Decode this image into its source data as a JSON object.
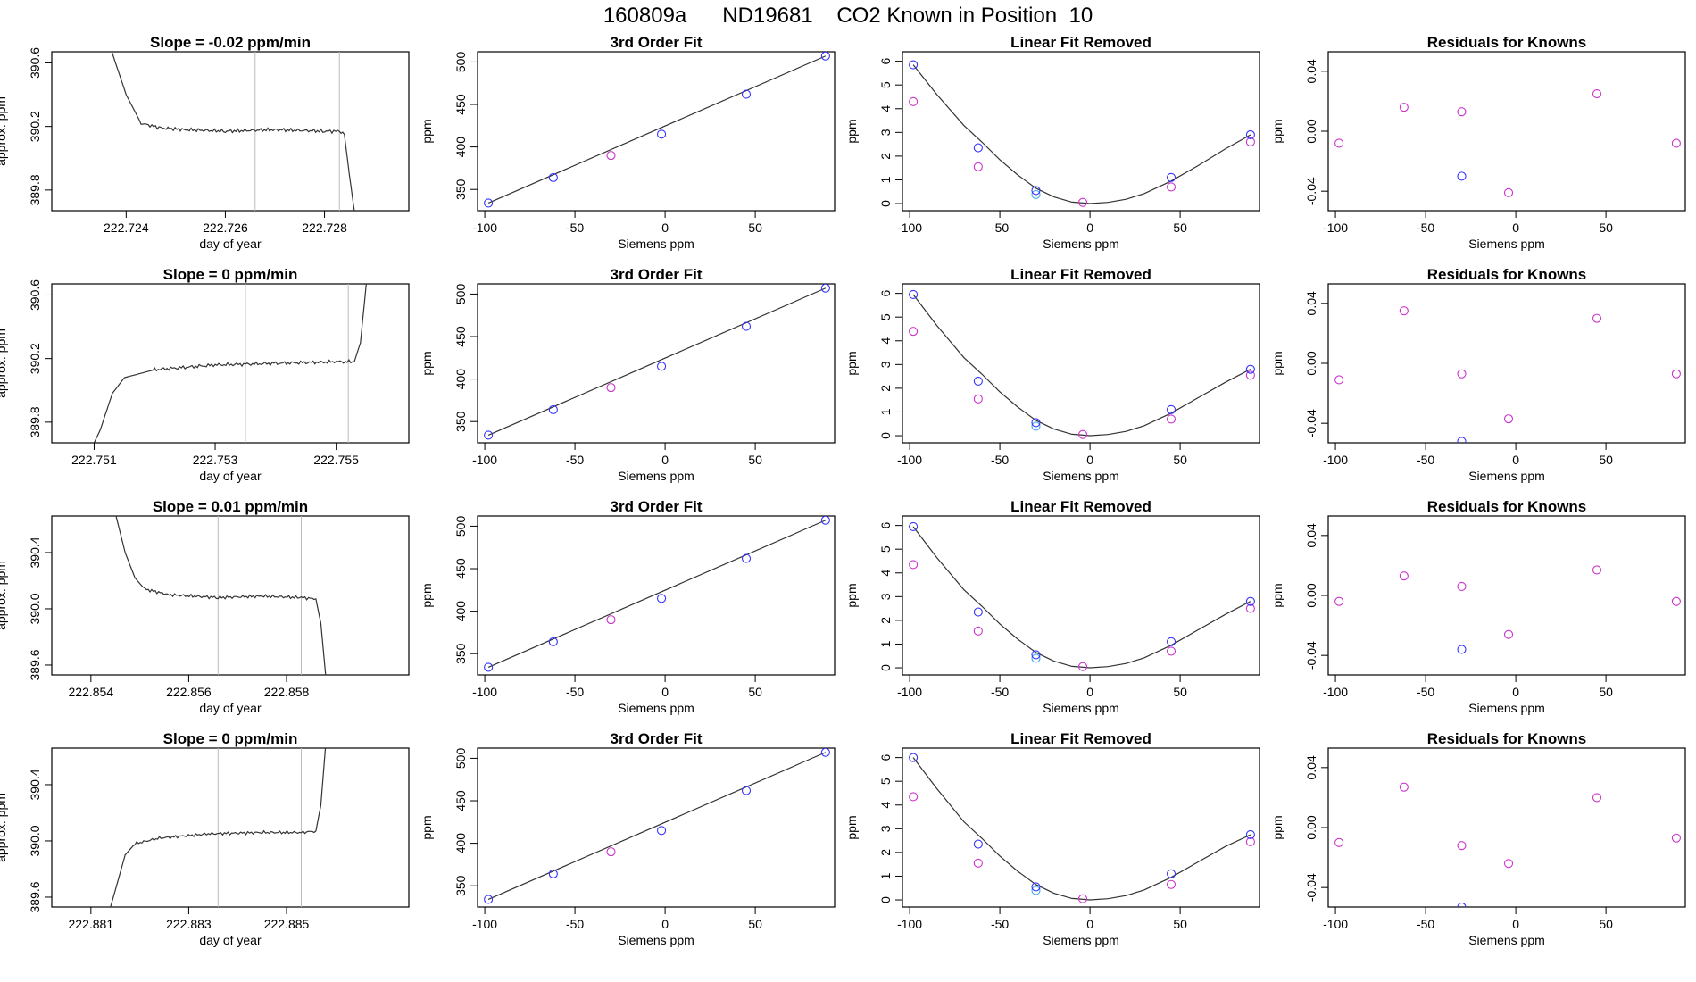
{
  "page_title": "160809a      ND19681    CO2 Known in Position  10",
  "colors": {
    "frame": "#000000",
    "curve": "#333333",
    "blue": "#3333ff",
    "magenta": "#cc33cc",
    "cyan": "#44aadd",
    "vline": "#bbbbbb",
    "red": "#dd4444"
  },
  "chart_data": [
    {
      "type": "line",
      "title": "Slope =  -0.02  ppm/min",
      "xlabel": "day of year",
      "ylabel": "approx. ppm",
      "xlim": [
        222.7225,
        222.7297
      ],
      "ylim": [
        389.67,
        390.67
      ],
      "xticks": [
        222.724,
        222.726,
        222.728
      ],
      "xtick_labels": [
        "222.724",
        "222.726",
        "222.728"
      ],
      "yticks": [
        389.8,
        390.2,
        390.6
      ],
      "ytick_labels": [
        "389.8",
        "390.2",
        "390.6"
      ],
      "vlines": [
        222.7266,
        222.7283
      ],
      "x": [
        222.7237,
        222.724,
        222.7243,
        222.7247,
        222.7252,
        222.726,
        222.727,
        222.728,
        222.7283,
        222.7284,
        222.7285,
        222.7286
      ],
      "y": [
        390.68,
        390.4,
        390.22,
        390.19,
        390.18,
        390.17,
        390.18,
        390.17,
        390.17,
        390.15,
        389.9,
        389.67
      ]
    },
    {
      "type": "scatter",
      "title": "3rd Order Fit",
      "xlabel": "Siemens ppm",
      "ylabel": "ppm",
      "xlim": [
        -104,
        94
      ],
      "ylim": [
        325,
        512
      ],
      "xticks": [
        -100,
        -50,
        0,
        50
      ],
      "xtick_labels": [
        "-100",
        "-50",
        "0",
        "50"
      ],
      "yticks": [
        350,
        400,
        450,
        500
      ],
      "ytick_labels": [
        "350",
        "400",
        "450",
        "500"
      ],
      "points_blue": {
        "x": [
          -98,
          -62,
          -2,
          45,
          89
        ],
        "y": [
          334,
          364,
          415,
          462,
          507
        ]
      },
      "points_magenta": {
        "x": [
          -30
        ],
        "y": [
          390
        ]
      },
      "fit_line": {
        "x": [
          -98,
          89
        ],
        "y": [
          334,
          507
        ]
      }
    },
    {
      "type": "scatter",
      "title": "Linear Fit Removed",
      "xlabel": "Siemens ppm",
      "ylabel": "ppm",
      "xlim": [
        -104,
        94
      ],
      "ylim": [
        -0.3,
        6.4
      ],
      "xticks": [
        -100,
        -50,
        0,
        50
      ],
      "xtick_labels": [
        "-100",
        "-50",
        "0",
        "50"
      ],
      "yticks": [
        0,
        1,
        2,
        3,
        4,
        5,
        6
      ],
      "ytick_labels": [
        "0",
        "1",
        "2",
        "3",
        "4",
        "5",
        "6"
      ],
      "points_blue": {
        "x": [
          -98,
          -62,
          -30,
          45,
          89
        ],
        "y": [
          5.85,
          2.35,
          0.55,
          1.1,
          2.9
        ]
      },
      "points_magenta": {
        "x": [
          -98,
          -62,
          -4,
          45,
          89
        ],
        "y": [
          4.3,
          1.55,
          0.05,
          0.7,
          2.6
        ]
      },
      "points_cyan": {
        "x": [
          -30
        ],
        "y": [
          0.38
        ]
      },
      "fit_curve": {
        "x": [
          -98,
          -85,
          -70,
          -60,
          -50,
          -40,
          -30,
          -20,
          -10,
          0,
          10,
          20,
          30,
          45,
          60,
          75,
          89
        ],
        "y": [
          5.85,
          4.6,
          3.3,
          2.6,
          1.85,
          1.2,
          0.65,
          0.28,
          0.06,
          0.0,
          0.05,
          0.18,
          0.42,
          0.95,
          1.6,
          2.3,
          2.9
        ]
      }
    },
    {
      "type": "scatter",
      "title": "Residuals for Knowns",
      "xlabel": "Siemens ppm",
      "ylabel": "ppm",
      "xlim": [
        -104,
        94
      ],
      "ylim": [
        -0.053,
        0.053
      ],
      "xticks": [
        -100,
        -50,
        0,
        50
      ],
      "xtick_labels": [
        "-100",
        "-50",
        "0",
        "50"
      ],
      "yticks": [
        -0.04,
        0.0,
        0.04
      ],
      "ytick_labels": [
        "-0.04",
        "0.00",
        "0.04"
      ],
      "points_blue": {
        "x": [
          -30
        ],
        "y": [
          -0.03
        ]
      },
      "points_magenta": {
        "x": [
          -98,
          -62,
          -30,
          -4,
          45,
          89
        ],
        "y": [
          -0.008,
          0.016,
          0.013,
          -0.041,
          0.025,
          -0.008
        ]
      }
    },
    {
      "type": "line",
      "title": "Slope =  0  ppm/min",
      "xlabel": "day of year",
      "ylabel": "approx. ppm",
      "xlim": [
        222.7503,
        222.7562
      ],
      "ylim": [
        389.67,
        390.67
      ],
      "xticks": [
        222.751,
        222.753,
        222.755
      ],
      "xtick_labels": [
        "222.751",
        "222.753",
        "222.755"
      ],
      "yticks": [
        389.8,
        390.2,
        390.6
      ],
      "ytick_labels": [
        "389.8",
        "390.2",
        "390.6"
      ],
      "vlines": [
        222.7535,
        222.7552
      ],
      "x": [
        222.751,
        222.7511,
        222.7513,
        222.7515,
        222.752,
        222.753,
        222.754,
        222.755,
        222.7553,
        222.7554,
        222.7555
      ],
      "y": [
        389.67,
        389.75,
        389.98,
        390.08,
        390.13,
        390.16,
        390.17,
        390.18,
        390.18,
        390.3,
        390.68
      ]
    },
    {
      "type": "scatter",
      "title": "3rd Order Fit",
      "xlabel": "Siemens ppm",
      "ylabel": "ppm",
      "xlim": [
        -104,
        94
      ],
      "ylim": [
        325,
        512
      ],
      "xticks": [
        -100,
        -50,
        0,
        50
      ],
      "xtick_labels": [
        "-100",
        "-50",
        "0",
        "50"
      ],
      "yticks": [
        350,
        400,
        450,
        500
      ],
      "ytick_labels": [
        "350",
        "400",
        "450",
        "500"
      ],
      "points_blue": {
        "x": [
          -98,
          -62,
          -2,
          45,
          89
        ],
        "y": [
          334,
          364,
          415,
          462,
          507
        ]
      },
      "points_magenta": {
        "x": [
          -30
        ],
        "y": [
          390
        ]
      },
      "fit_line": {
        "x": [
          -98,
          89
        ],
        "y": [
          334,
          507
        ]
      }
    },
    {
      "type": "scatter",
      "title": "Linear Fit Removed",
      "xlabel": "Siemens ppm",
      "ylabel": "ppm",
      "xlim": [
        -104,
        94
      ],
      "ylim": [
        -0.3,
        6.4
      ],
      "xticks": [
        -100,
        -50,
        0,
        50
      ],
      "xtick_labels": [
        "-100",
        "-50",
        "0",
        "50"
      ],
      "yticks": [
        0,
        1,
        2,
        3,
        4,
        5,
        6
      ],
      "ytick_labels": [
        "0",
        "1",
        "2",
        "3",
        "4",
        "5",
        "6"
      ],
      "points_blue": {
        "x": [
          -98,
          -62,
          -30,
          45,
          89
        ],
        "y": [
          5.95,
          2.3,
          0.55,
          1.1,
          2.8
        ]
      },
      "points_magenta": {
        "x": [
          -98,
          -62,
          -4,
          45,
          89
        ],
        "y": [
          4.4,
          1.55,
          0.05,
          0.7,
          2.55
        ]
      },
      "points_cyan": {
        "x": [
          -30
        ],
        "y": [
          0.4
        ]
      },
      "fit_curve": {
        "x": [
          -98,
          -85,
          -70,
          -60,
          -50,
          -40,
          -30,
          -20,
          -10,
          0,
          10,
          20,
          30,
          45,
          60,
          75,
          89
        ],
        "y": [
          5.95,
          4.65,
          3.3,
          2.6,
          1.85,
          1.2,
          0.65,
          0.28,
          0.06,
          0.0,
          0.05,
          0.18,
          0.42,
          0.95,
          1.6,
          2.25,
          2.8
        ]
      }
    },
    {
      "type": "scatter",
      "title": "Residuals for Knowns",
      "xlabel": "Siemens ppm",
      "ylabel": "ppm",
      "xlim": [
        -104,
        94
      ],
      "ylim": [
        -0.053,
        0.053
      ],
      "xticks": [
        -100,
        -50,
        0,
        50
      ],
      "xtick_labels": [
        "-100",
        "-50",
        "0",
        "50"
      ],
      "yticks": [
        -0.04,
        0.0,
        0.04
      ],
      "ytick_labels": [
        "-0.04",
        "0.00",
        "0.04"
      ],
      "points_blue": {
        "x": [
          -30
        ],
        "y": [
          -0.052
        ]
      },
      "points_magenta": {
        "x": [
          -98,
          -62,
          -30,
          -4,
          45,
          89
        ],
        "y": [
          -0.011,
          0.035,
          -0.007,
          -0.037,
          0.03,
          -0.007
        ]
      }
    },
    {
      "type": "line",
      "title": "Slope =  0.01  ppm/min",
      "xlabel": "day of year",
      "ylabel": "approx. ppm",
      "xlim": [
        222.8532,
        222.8605
      ],
      "ylim": [
        389.53,
        390.66
      ],
      "xticks": [
        222.854,
        222.856,
        222.858
      ],
      "xtick_labels": [
        "222.854",
        "222.856",
        "222.858"
      ],
      "yticks": [
        389.6,
        390.0,
        390.4
      ],
      "ytick_labels": [
        "389.6",
        "390.0",
        "390.4"
      ],
      "vlines": [
        222.8566,
        222.8583
      ],
      "x": [
        222.8545,
        222.8547,
        222.8549,
        222.8551,
        222.8556,
        222.8566,
        222.8575,
        222.8583,
        222.8586,
        222.8587,
        222.8588
      ],
      "y": [
        390.68,
        390.4,
        390.22,
        390.14,
        390.1,
        390.08,
        390.09,
        390.08,
        390.07,
        389.9,
        389.53
      ]
    },
    {
      "type": "scatter",
      "title": "3rd Order Fit",
      "xlabel": "Siemens ppm",
      "ylabel": "ppm",
      "xlim": [
        -104,
        94
      ],
      "ylim": [
        325,
        512
      ],
      "xticks": [
        -100,
        -50,
        0,
        50
      ],
      "xtick_labels": [
        "-100",
        "-50",
        "0",
        "50"
      ],
      "yticks": [
        350,
        400,
        450,
        500
      ],
      "ytick_labels": [
        "350",
        "400",
        "450",
        "500"
      ],
      "points_blue": {
        "x": [
          -98,
          -62,
          -2,
          45,
          89
        ],
        "y": [
          334,
          364,
          415,
          462,
          507
        ]
      },
      "points_magenta": {
        "x": [
          -30
        ],
        "y": [
          390
        ]
      },
      "fit_line": {
        "x": [
          -98,
          89
        ],
        "y": [
          334,
          507
        ]
      }
    },
    {
      "type": "scatter",
      "title": "Linear Fit Removed",
      "xlabel": "Siemens ppm",
      "ylabel": "ppm",
      "xlim": [
        -104,
        94
      ],
      "ylim": [
        -0.3,
        6.4
      ],
      "xticks": [
        -100,
        -50,
        0,
        50
      ],
      "xtick_labels": [
        "-100",
        "-50",
        "0",
        "50"
      ],
      "yticks": [
        0,
        1,
        2,
        3,
        4,
        5,
        6
      ],
      "ytick_labels": [
        "0",
        "1",
        "2",
        "3",
        "4",
        "5",
        "6"
      ],
      "points_blue": {
        "x": [
          -98,
          -62,
          -30,
          45,
          89
        ],
        "y": [
          5.95,
          2.35,
          0.55,
          1.1,
          2.8
        ]
      },
      "points_magenta": {
        "x": [
          -98,
          -62,
          -4,
          45,
          89
        ],
        "y": [
          4.35,
          1.55,
          0.05,
          0.7,
          2.5
        ]
      },
      "points_cyan": {
        "x": [
          -30
        ],
        "y": [
          0.4
        ]
      },
      "fit_curve": {
        "x": [
          -98,
          -85,
          -70,
          -60,
          -50,
          -40,
          -30,
          -20,
          -10,
          0,
          10,
          20,
          30,
          45,
          60,
          75,
          89
        ],
        "y": [
          5.95,
          4.65,
          3.3,
          2.6,
          1.85,
          1.2,
          0.65,
          0.28,
          0.06,
          0.0,
          0.05,
          0.18,
          0.42,
          0.95,
          1.6,
          2.25,
          2.8
        ]
      }
    },
    {
      "type": "scatter",
      "title": "Residuals for Knowns",
      "xlabel": "Siemens ppm",
      "ylabel": "ppm",
      "xlim": [
        -104,
        94
      ],
      "ylim": [
        -0.053,
        0.053
      ],
      "xticks": [
        -100,
        -50,
        0,
        50
      ],
      "xtick_labels": [
        "-100",
        "-50",
        "0",
        "50"
      ],
      "yticks": [
        -0.04,
        0.0,
        0.04
      ],
      "ytick_labels": [
        "-0.04",
        "0.00",
        "0.04"
      ],
      "points_blue": {
        "x": [
          -30
        ],
        "y": [
          -0.036
        ]
      },
      "points_magenta": {
        "x": [
          -98,
          -62,
          -30,
          -4,
          45,
          89
        ],
        "y": [
          -0.004,
          0.013,
          0.006,
          -0.026,
          0.017,
          -0.004
        ]
      }
    },
    {
      "type": "line",
      "title": "Slope =  0  ppm/min",
      "xlabel": "day of year",
      "ylabel": "approx. ppm",
      "xlim": [
        222.8802,
        222.8875
      ],
      "ylim": [
        389.53,
        390.66
      ],
      "xticks": [
        222.881,
        222.883,
        222.885
      ],
      "xtick_labels": [
        "222.881",
        "222.883",
        "222.885"
      ],
      "yticks": [
        389.6,
        390.0,
        390.4
      ],
      "ytick_labels": [
        "389.6",
        "390.0",
        "390.4"
      ],
      "vlines": [
        222.8836,
        222.8853
      ],
      "x": [
        222.8814,
        222.8815,
        222.8817,
        222.8819,
        222.8824,
        222.8834,
        222.8845,
        222.8853,
        222.8856,
        222.8857,
        222.8858
      ],
      "y": [
        389.53,
        389.65,
        389.9,
        389.98,
        390.02,
        390.05,
        390.06,
        390.06,
        390.07,
        390.25,
        390.68
      ]
    },
    {
      "type": "scatter",
      "title": "3rd Order Fit",
      "xlabel": "Siemens ppm",
      "ylabel": "ppm",
      "xlim": [
        -104,
        94
      ],
      "ylim": [
        325,
        512
      ],
      "xticks": [
        -100,
        -50,
        0,
        50
      ],
      "xtick_labels": [
        "-100",
        "-50",
        "0",
        "50"
      ],
      "yticks": [
        350,
        400,
        450,
        500
      ],
      "ytick_labels": [
        "350",
        "400",
        "450",
        "500"
      ],
      "points_blue": {
        "x": [
          -98,
          -62,
          -2,
          45,
          89
        ],
        "y": [
          334,
          364,
          415,
          462,
          507
        ]
      },
      "points_magenta": {
        "x": [
          -30
        ],
        "y": [
          390
        ]
      },
      "fit_line": {
        "x": [
          -98,
          89
        ],
        "y": [
          334,
          507
        ]
      }
    },
    {
      "type": "scatter",
      "title": "Linear Fit Removed",
      "xlabel": "Siemens ppm",
      "ylabel": "ppm",
      "xlim": [
        -104,
        94
      ],
      "ylim": [
        -0.3,
        6.4
      ],
      "xticks": [
        -100,
        -50,
        0,
        50
      ],
      "xtick_labels": [
        "-100",
        "-50",
        "0",
        "50"
      ],
      "yticks": [
        0,
        1,
        2,
        3,
        4,
        5,
        6
      ],
      "ytick_labels": [
        "0",
        "1",
        "2",
        "3",
        "4",
        "5",
        "6"
      ],
      "points_blue": {
        "x": [
          -98,
          -62,
          -30,
          45,
          89
        ],
        "y": [
          6.0,
          2.35,
          0.55,
          1.1,
          2.75
        ]
      },
      "points_magenta": {
        "x": [
          -98,
          -62,
          -4,
          45,
          89
        ],
        "y": [
          4.35,
          1.55,
          0.05,
          0.65,
          2.45
        ]
      },
      "points_cyan": {
        "x": [
          -30
        ],
        "y": [
          0.4
        ]
      },
      "fit_curve": {
        "x": [
          -98,
          -85,
          -70,
          -60,
          -50,
          -40,
          -30,
          -20,
          -10,
          0,
          10,
          20,
          30,
          45,
          60,
          75,
          89
        ],
        "y": [
          6.0,
          4.7,
          3.3,
          2.6,
          1.85,
          1.2,
          0.65,
          0.28,
          0.06,
          0.0,
          0.05,
          0.18,
          0.42,
          0.95,
          1.6,
          2.25,
          2.75
        ]
      }
    },
    {
      "type": "scatter",
      "title": "Residuals for Knowns",
      "xlabel": "Siemens ppm",
      "ylabel": "ppm",
      "xlim": [
        -104,
        94
      ],
      "ylim": [
        -0.053,
        0.053
      ],
      "xticks": [
        -100,
        -50,
        0,
        50
      ],
      "xtick_labels": [
        "-100",
        "-50",
        "0",
        "50"
      ],
      "yticks": [
        -0.04,
        0.0,
        0.04
      ],
      "ytick_labels": [
        "-0.04",
        "0.00",
        "0.04"
      ],
      "points_blue": {
        "x": [
          -30
        ],
        "y": [
          -0.053
        ]
      },
      "points_magenta": {
        "x": [
          -98,
          -62,
          -30,
          -4,
          45,
          89
        ],
        "y": [
          -0.01,
          0.027,
          -0.012,
          -0.024,
          0.02,
          -0.007
        ]
      }
    }
  ]
}
